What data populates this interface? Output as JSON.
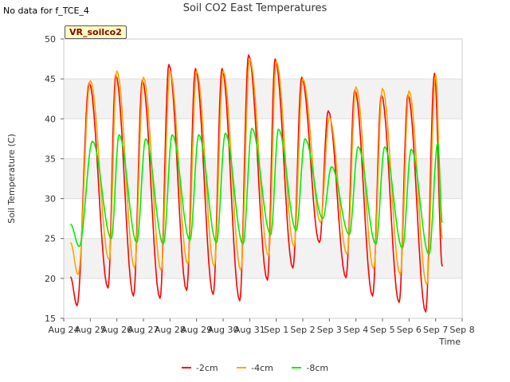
{
  "page": {
    "nodata_note": "No data for f_TCE_4",
    "site_badge": "VR_soilco2"
  },
  "chart_data": {
    "type": "line",
    "title": "Soil CO2 East Temperatures",
    "xlabel": "Time",
    "ylabel": "Soil Temperature (C)",
    "xlim": [
      "Aug 24",
      "Sep 8"
    ],
    "ylim": [
      15,
      50
    ],
    "x_ticks": [
      "Aug 24",
      "Aug 25",
      "Aug 26",
      "Aug 27",
      "Aug 28",
      "Aug 29",
      "Aug 30",
      "Aug 31",
      "Sep 1",
      "Sep 2",
      "Sep 3",
      "Sep 4",
      "Sep 5",
      "Sep 6",
      "Sep 7",
      "Sep 8"
    ],
    "y_ticks": [
      15,
      20,
      25,
      30,
      35,
      40,
      45,
      50
    ],
    "grid": "horizontal alternating bands",
    "legend_position": "bottom-center",
    "series": [
      {
        "name": "-2cm",
        "color": "#ff0000",
        "daily_min_time": [
          "Aug 24 12:00",
          "Aug 25 16:00",
          "Aug 26 15:00",
          "Aug 27 15:00",
          "Aug 28 15:00",
          "Aug 29 15:00",
          "Aug 30 15:00",
          "Aug 31 16:00",
          "Sep 1 15:00",
          "Sep 2 15:00",
          "Sep 3 15:00",
          "Sep 4 15:00",
          "Sep 5 15:00",
          "Sep 6 15:00"
        ],
        "daily_min": [
          16.6,
          18.8,
          17.8,
          17.5,
          18.5,
          18.0,
          17.2,
          19.8,
          21.3,
          24.5,
          20.1,
          17.8,
          17.0,
          15.8
        ],
        "daily_max_time": [
          "Aug 24 23:00",
          "Aug 25 23:00",
          "Aug 26 23:00",
          "Aug 27 23:00",
          "Aug 28 23:00",
          "Aug 29 23:00",
          "Aug 30 23:00",
          "Aug 31 23:00",
          "Sep 1 23:00",
          "Sep 2 23:00",
          "Sep 3 23:00",
          "Sep 4 23:00",
          "Sep 5 23:00",
          "Sep 6 23:00"
        ],
        "daily_max": [
          44.5,
          45.5,
          44.8,
          46.8,
          46.3,
          46.3,
          48.0,
          47.5,
          45.2,
          41.0,
          43.6,
          43.0,
          43.0,
          45.7
        ],
        "start": [
          "Aug 24 06:00",
          20.2
        ],
        "end": [
          "Sep 7 06:00",
          21.5
        ]
      },
      {
        "name": "-4cm",
        "color": "#ffa500",
        "daily_min_time": [
          "Aug 24 13:00",
          "Aug 25 17:00",
          "Aug 26 16:00",
          "Aug 27 16:00",
          "Aug 28 16:00",
          "Aug 29 16:00",
          "Aug 30 16:00",
          "Aug 31 17:00",
          "Sep 1 16:00",
          "Sep 2 16:00",
          "Sep 3 16:00",
          "Sep 4 16:00",
          "Sep 5 16:00",
          "Sep 6 16:00"
        ],
        "daily_min": [
          20.5,
          22.3,
          21.3,
          21.0,
          21.8,
          21.5,
          21.0,
          22.8,
          24.0,
          27.0,
          23.0,
          21.2,
          20.5,
          19.2
        ],
        "daily_max_time": [
          "Aug 25 00:00",
          "Aug 26 00:00",
          "Aug 27 00:00",
          "Aug 28 00:00",
          "Aug 29 00:00",
          "Aug 30 00:00",
          "Aug 31 00:00",
          "Sep 1 00:00",
          "Sep 2 00:00",
          "Sep 3 00:00",
          "Sep 4 00:00",
          "Sep 5 00:00",
          "Sep 6 00:00",
          "Sep 7 00:00"
        ],
        "daily_max": [
          44.8,
          46.0,
          45.2,
          46.0,
          46.0,
          46.0,
          47.5,
          47.2,
          45.0,
          40.2,
          44.0,
          43.8,
          43.5,
          45.5
        ],
        "start": [
          "Aug 24 06:00",
          24.5
        ],
        "end": [
          "Sep 7 06:00",
          25.0
        ]
      },
      {
        "name": "-8cm",
        "color": "#00ee00",
        "daily_min_time": [
          "Aug 24 14:00",
          "Aug 25 19:00",
          "Aug 26 18:00",
          "Aug 27 18:00",
          "Aug 28 18:00",
          "Aug 29 18:00",
          "Aug 30 18:00",
          "Aug 31 19:00",
          "Sep 1 18:00",
          "Sep 2 18:00",
          "Sep 3 18:00",
          "Sep 4 18:00",
          "Sep 5 18:00",
          "Sep 6 18:00"
        ],
        "daily_min": [
          24.0,
          25.0,
          24.5,
          24.3,
          24.8,
          24.5,
          24.3,
          25.5,
          26.0,
          27.5,
          25.5,
          24.3,
          23.8,
          23.0
        ],
        "daily_max_time": [
          "Aug 25 02:00",
          "Aug 26 02:00",
          "Aug 27 02:00",
          "Aug 28 02:00",
          "Aug 29 02:00",
          "Aug 30 02:00",
          "Aug 31 02:00",
          "Sep 1 02:00",
          "Sep 2 02:00",
          "Sep 3 02:00",
          "Sep 4 02:00",
          "Sep 5 02:00",
          "Sep 6 02:00",
          "Sep 7 02:00"
        ],
        "daily_max": [
          37.2,
          38.0,
          37.5,
          38.0,
          38.0,
          38.2,
          38.8,
          38.7,
          37.5,
          34.0,
          36.5,
          36.5,
          36.2,
          37.0
        ],
        "start": [
          "Aug 24 06:00",
          26.8
        ],
        "end": [
          "Sep 7 06:00",
          27.0
        ]
      }
    ]
  }
}
